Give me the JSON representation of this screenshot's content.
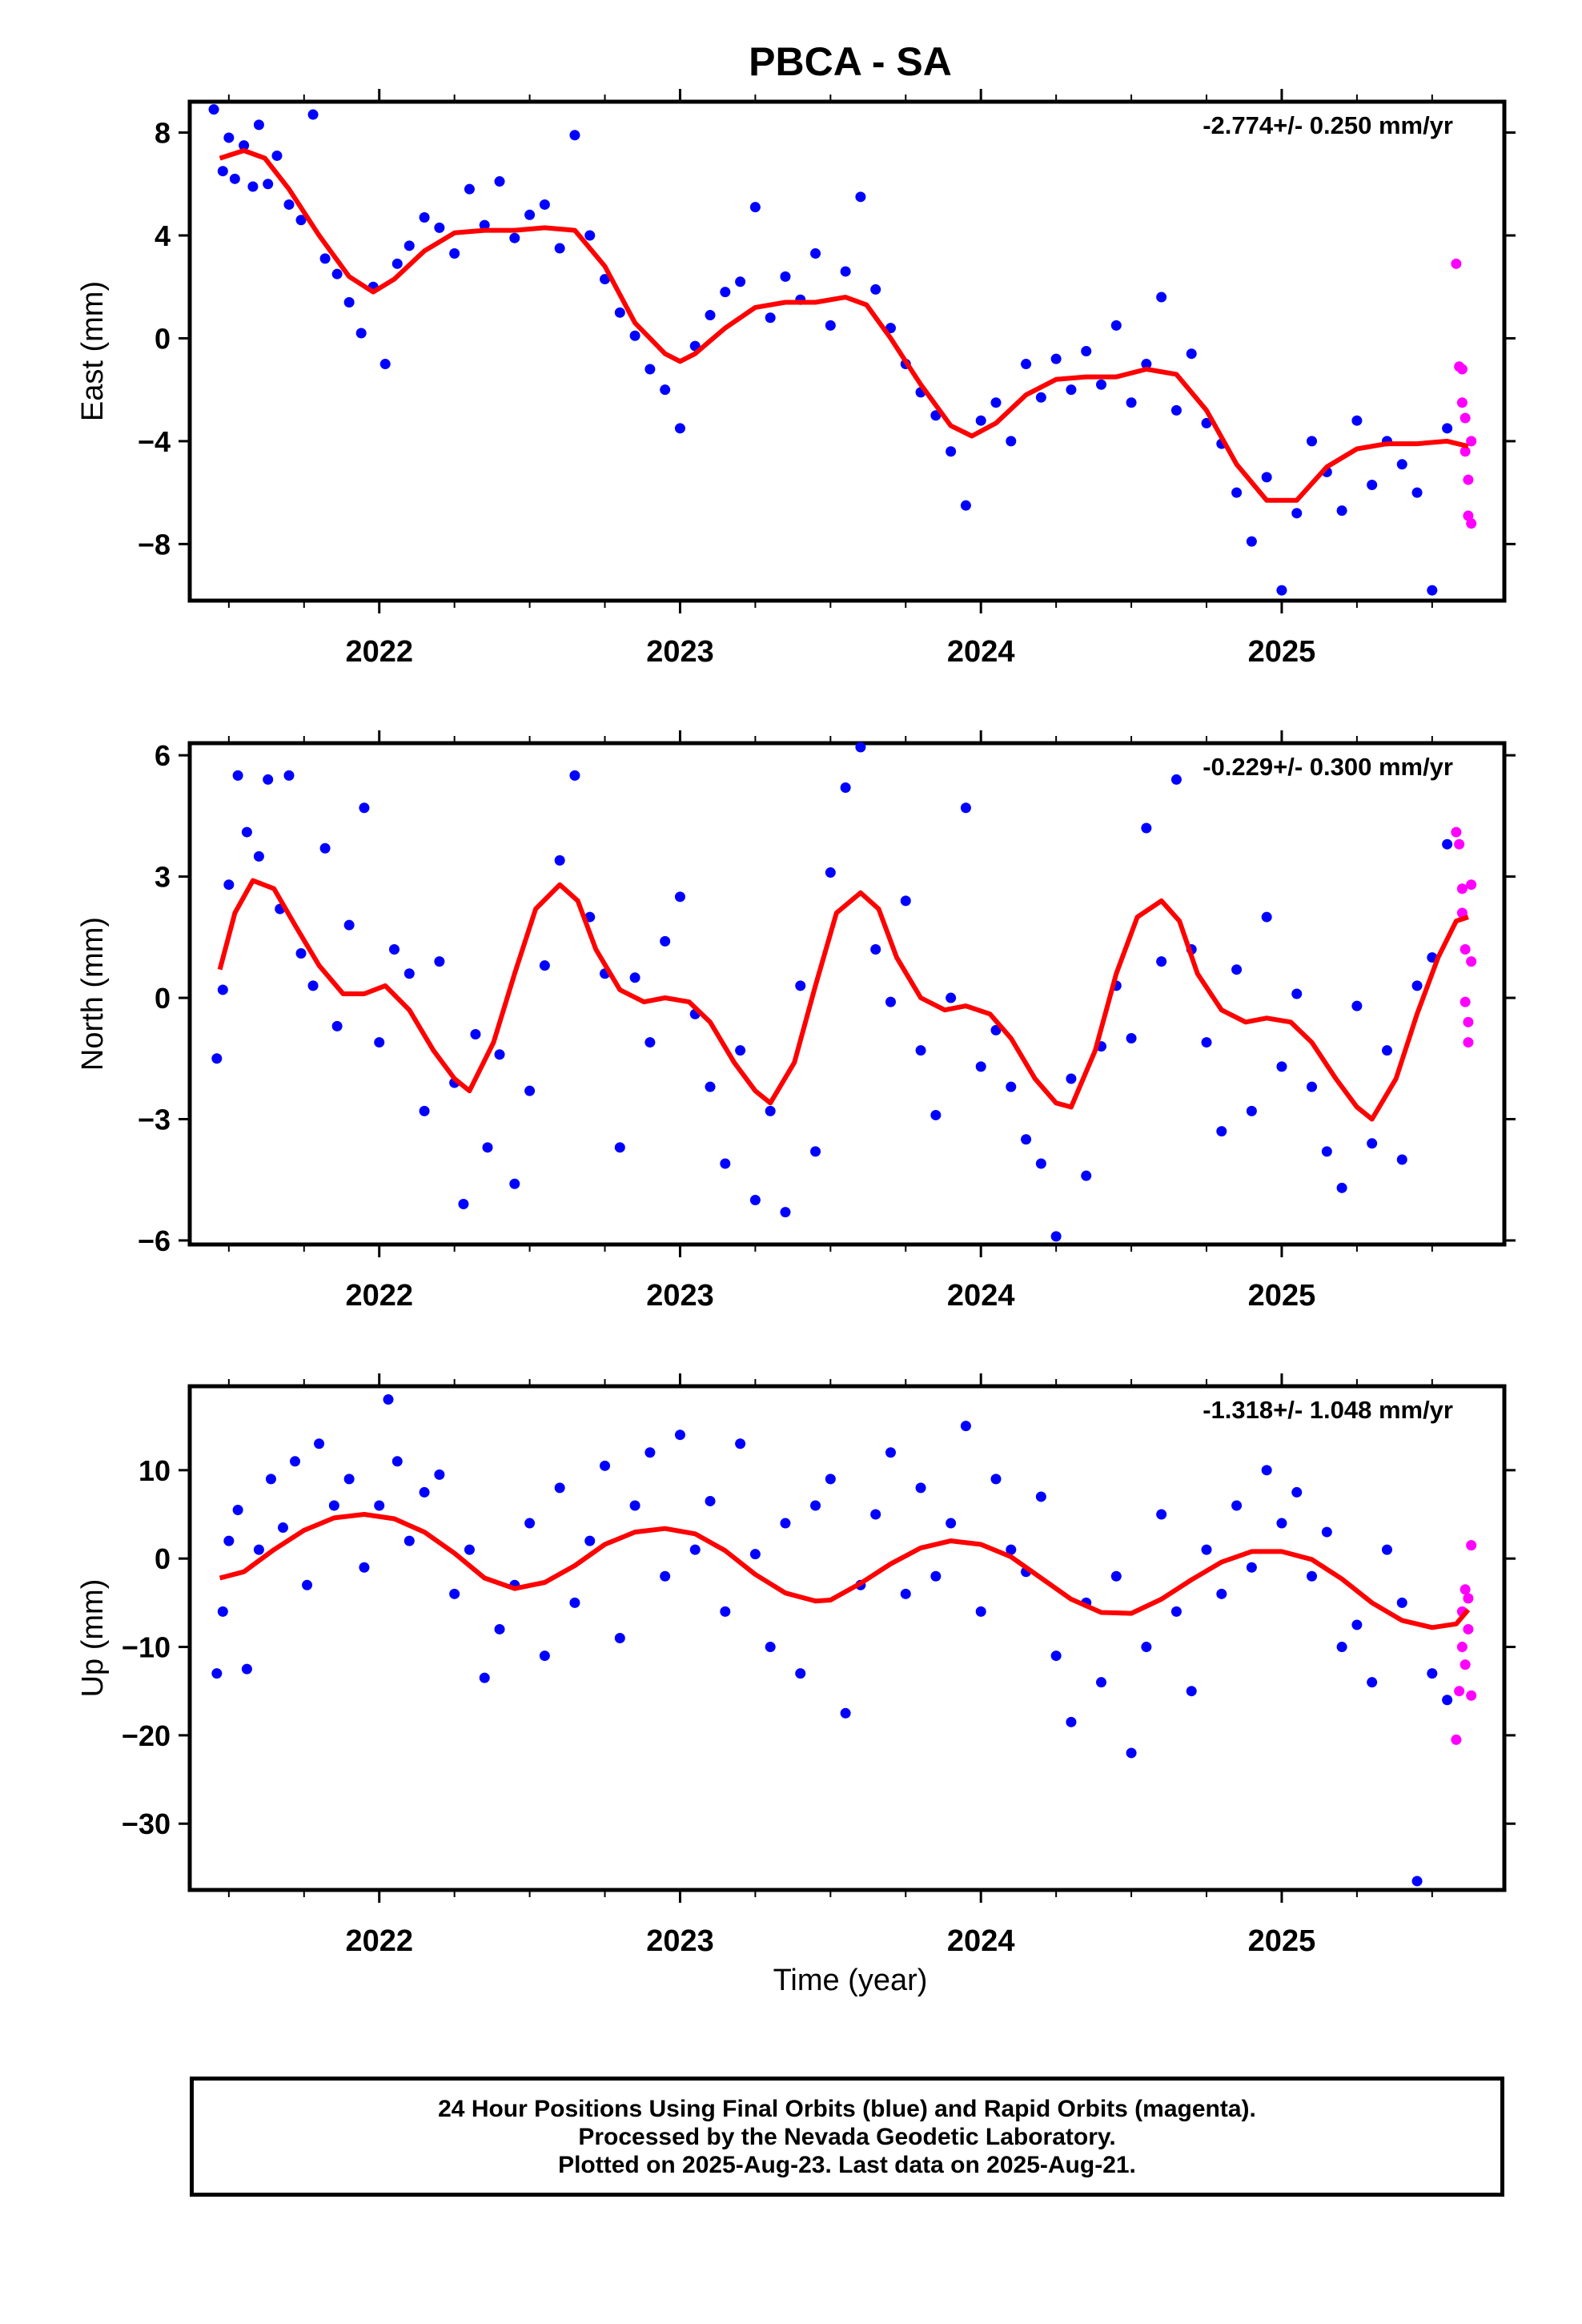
{
  "title": "PBCA - SA",
  "x_tick_labels": [
    "2022",
    "2023",
    "2024",
    "2025"
  ],
  "x_axis_label": "Time (year)",
  "colors": {
    "final": "#0000ff",
    "rapid": "#ff00ff",
    "fit": "#ff0000",
    "frame": "#000000"
  },
  "chart_data": [
    {
      "type": "scatter",
      "component": "East",
      "ylabel": "East (mm)",
      "rate_text": "-2.774+/- 0.250 mm/yr",
      "xlim": [
        2021.37,
        2025.74
      ],
      "ylim": [
        -10.2,
        9.2
      ],
      "yticks": [
        8,
        4,
        0,
        -4,
        -8
      ],
      "ytick_labels": [
        "8",
        "4",
        "0",
        "−4",
        "−8"
      ],
      "fit_line": {
        "name": "fit",
        "x": [
          2021.47,
          2021.55,
          2021.62,
          2021.7,
          2021.8,
          2021.9,
          2021.98,
          2022.05,
          2022.15,
          2022.25,
          2022.35,
          2022.45,
          2022.55,
          2022.65,
          2022.75,
          2022.85,
          2022.95,
          2023.0,
          2023.05,
          2023.15,
          2023.25,
          2023.35,
          2023.45,
          2023.55,
          2023.62,
          2023.7,
          2023.8,
          2023.9,
          2023.97,
          2024.05,
          2024.15,
          2024.25,
          2024.35,
          2024.45,
          2024.55,
          2024.65,
          2024.75,
          2024.85,
          2024.95,
          2025.05,
          2025.15,
          2025.25,
          2025.35,
          2025.45,
          2025.55,
          2025.62
        ],
        "y": [
          7.0,
          7.3,
          7.0,
          5.8,
          4.0,
          2.4,
          1.8,
          2.3,
          3.4,
          4.1,
          4.2,
          4.2,
          4.3,
          4.2,
          2.8,
          0.6,
          -0.6,
          -0.9,
          -0.6,
          0.4,
          1.2,
          1.4,
          1.4,
          1.6,
          1.3,
          0.0,
          -1.8,
          -3.4,
          -3.8,
          -3.3,
          -2.2,
          -1.6,
          -1.5,
          -1.5,
          -1.2,
          -1.4,
          -2.8,
          -4.9,
          -6.3,
          -6.3,
          -5.0,
          -4.3,
          -4.1,
          -4.1,
          -4.0,
          -4.2
        ]
      },
      "series": [
        {
          "name": "final",
          "x": [
            2021.45,
            2021.48,
            2021.5,
            2021.52,
            2021.55,
            2021.58,
            2021.6,
            2021.63,
            2021.66,
            2021.7,
            2021.74,
            2021.78,
            2021.82,
            2021.86,
            2021.9,
            2021.94,
            2021.98,
            2022.02,
            2022.06,
            2022.1,
            2022.15,
            2022.2,
            2022.25,
            2022.3,
            2022.35,
            2022.4,
            2022.45,
            2022.5,
            2022.55,
            2022.6,
            2022.65,
            2022.7,
            2022.75,
            2022.8,
            2022.85,
            2022.9,
            2022.95,
            2023.0,
            2023.05,
            2023.1,
            2023.15,
            2023.2,
            2023.25,
            2023.3,
            2023.35,
            2023.4,
            2023.45,
            2023.5,
            2023.55,
            2023.6,
            2023.65,
            2023.7,
            2023.75,
            2023.8,
            2023.85,
            2023.9,
            2023.95,
            2024.0,
            2024.05,
            2024.1,
            2024.15,
            2024.2,
            2024.25,
            2024.3,
            2024.35,
            2024.4,
            2024.45,
            2024.5,
            2024.55,
            2024.6,
            2024.65,
            2024.7,
            2024.75,
            2024.8,
            2024.85,
            2024.9,
            2024.95,
            2025.0,
            2025.05,
            2025.1,
            2025.15,
            2025.2,
            2025.25,
            2025.3,
            2025.35,
            2025.4,
            2025.45,
            2025.5,
            2025.55
          ],
          "y": [
            8.9,
            6.5,
            7.8,
            6.2,
            7.5,
            5.9,
            8.3,
            6.0,
            7.1,
            5.2,
            4.6,
            8.7,
            3.1,
            2.5,
            1.4,
            0.2,
            2.0,
            -1.0,
            2.9,
            3.6,
            4.7,
            4.3,
            3.3,
            5.8,
            4.4,
            6.1,
            3.9,
            4.8,
            5.2,
            3.5,
            7.9,
            4.0,
            2.3,
            1.0,
            0.1,
            -1.2,
            -2.0,
            -3.5,
            -0.3,
            0.9,
            1.8,
            2.2,
            5.1,
            0.8,
            2.4,
            1.5,
            3.3,
            0.5,
            2.6,
            5.5,
            1.9,
            0.4,
            -1.0,
            -2.1,
            -3.0,
            -4.4,
            -6.5,
            -3.2,
            -2.5,
            -4.0,
            -1.0,
            -2.3,
            -0.8,
            -2.0,
            -0.5,
            -1.8,
            0.5,
            -2.5,
            -1.0,
            1.6,
            -2.8,
            -0.6,
            -3.3,
            -4.1,
            -6.0,
            -7.9,
            -5.4,
            -9.8,
            -6.8,
            -4.0,
            -5.2,
            -6.7,
            -3.2,
            -5.7,
            -4.0,
            -4.9,
            -6.0,
            -9.8,
            -3.5
          ]
        },
        {
          "name": "rapid",
          "x": [
            2025.58,
            2025.59,
            2025.6,
            2025.6,
            2025.61,
            2025.61,
            2025.62,
            2025.62,
            2025.63,
            2025.63
          ],
          "y": [
            2.9,
            -1.1,
            -1.2,
            -2.5,
            -3.1,
            -4.4,
            -5.5,
            -6.9,
            -7.2,
            -4.0
          ]
        }
      ]
    },
    {
      "type": "scatter",
      "component": "North",
      "ylabel": "North (mm)",
      "rate_text": "-0.229+/- 0.300 mm/yr",
      "xlim": [
        2021.37,
        2025.74
      ],
      "ylim": [
        -6.1,
        6.3
      ],
      "yticks": [
        6,
        3,
        0,
        -3,
        -6
      ],
      "ytick_labels": [
        "6",
        "3",
        "0",
        "−3",
        "−6"
      ],
      "fit_line": {
        "name": "fit",
        "x": [
          2021.47,
          2021.52,
          2021.58,
          2021.65,
          2021.72,
          2021.8,
          2021.88,
          2021.95,
          2022.02,
          2022.1,
          2022.18,
          2022.25,
          2022.3,
          2022.38,
          2022.45,
          2022.52,
          2022.6,
          2022.66,
          2022.72,
          2022.8,
          2022.88,
          2022.95,
          2023.03,
          2023.1,
          2023.18,
          2023.25,
          2023.3,
          2023.38,
          2023.45,
          2023.52,
          2023.6,
          2023.66,
          2023.72,
          2023.8,
          2023.88,
          2023.95,
          2024.03,
          2024.1,
          2024.18,
          2024.25,
          2024.3,
          2024.38,
          2024.45,
          2024.52,
          2024.6,
          2024.66,
          2024.72,
          2024.8,
          2024.88,
          2024.95,
          2025.03,
          2025.1,
          2025.18,
          2025.25,
          2025.3,
          2025.38,
          2025.45,
          2025.52,
          2025.58,
          2025.62
        ],
        "y": [
          0.7,
          2.1,
          2.9,
          2.7,
          1.8,
          0.8,
          0.1,
          0.1,
          0.3,
          -0.3,
          -1.3,
          -2.0,
          -2.3,
          -1.1,
          0.6,
          2.2,
          2.8,
          2.4,
          1.2,
          0.2,
          -0.1,
          0.0,
          -0.1,
          -0.6,
          -1.6,
          -2.3,
          -2.6,
          -1.6,
          0.3,
          2.1,
          2.6,
          2.2,
          1.0,
          0.0,
          -0.3,
          -0.2,
          -0.4,
          -1.0,
          -2.0,
          -2.6,
          -2.7,
          -1.3,
          0.6,
          2.0,
          2.4,
          1.9,
          0.6,
          -0.3,
          -0.6,
          -0.5,
          -0.6,
          -1.1,
          -2.0,
          -2.7,
          -3.0,
          -2.0,
          -0.4,
          1.0,
          1.9,
          2.0
        ]
      },
      "series": [
        {
          "name": "final",
          "x": [
            2021.46,
            2021.48,
            2021.5,
            2021.53,
            2021.56,
            2021.6,
            2021.63,
            2021.67,
            2021.7,
            2021.74,
            2021.78,
            2021.82,
            2021.86,
            2021.9,
            2021.95,
            2022.0,
            2022.05,
            2022.1,
            2022.15,
            2022.2,
            2022.25,
            2022.28,
            2022.32,
            2022.36,
            2022.4,
            2022.45,
            2022.5,
            2022.55,
            2022.6,
            2022.65,
            2022.7,
            2022.75,
            2022.8,
            2022.85,
            2022.9,
            2022.95,
            2023.0,
            2023.05,
            2023.1,
            2023.15,
            2023.2,
            2023.25,
            2023.3,
            2023.35,
            2023.4,
            2023.45,
            2023.5,
            2023.55,
            2023.6,
            2023.65,
            2023.7,
            2023.75,
            2023.8,
            2023.85,
            2023.9,
            2023.95,
            2024.0,
            2024.05,
            2024.1,
            2024.15,
            2024.2,
            2024.25,
            2024.3,
            2024.35,
            2024.4,
            2024.45,
            2024.5,
            2024.55,
            2024.6,
            2024.65,
            2024.7,
            2024.75,
            2024.8,
            2024.85,
            2024.9,
            2024.95,
            2025.0,
            2025.05,
            2025.1,
            2025.15,
            2025.2,
            2025.25,
            2025.3,
            2025.35,
            2025.4,
            2025.45,
            2025.5,
            2025.55
          ],
          "y": [
            -1.5,
            0.2,
            2.8,
            5.5,
            4.1,
            3.5,
            5.4,
            2.2,
            5.5,
            1.1,
            0.3,
            3.7,
            -0.7,
            1.8,
            4.7,
            -1.1,
            1.2,
            0.6,
            -2.8,
            0.9,
            -2.1,
            -5.1,
            -0.9,
            -3.7,
            -1.4,
            -4.6,
            -2.3,
            0.8,
            3.4,
            5.5,
            2.0,
            0.6,
            -3.7,
            0.5,
            -1.1,
            1.4,
            2.5,
            -0.4,
            -2.2,
            -4.1,
            -1.3,
            -5.0,
            -2.8,
            -5.3,
            0.3,
            -3.8,
            3.1,
            5.2,
            6.2,
            1.2,
            -0.1,
            2.4,
            -1.3,
            -2.9,
            0.0,
            4.7,
            -1.7,
            -0.8,
            -2.2,
            -3.5,
            -4.1,
            -5.9,
            -2.0,
            -4.4,
            -1.2,
            0.3,
            -1.0,
            4.2,
            0.9,
            5.4,
            1.2,
            -1.1,
            -3.3,
            0.7,
            -2.8,
            2.0,
            -1.7,
            0.1,
            -2.2,
            -3.8,
            -4.7,
            -0.2,
            -3.6,
            -1.3,
            -4.0,
            0.3,
            1.0,
            3.8
          ]
        },
        {
          "name": "rapid",
          "x": [
            2025.58,
            2025.59,
            2025.6,
            2025.6,
            2025.61,
            2025.61,
            2025.62,
            2025.62,
            2025.63,
            2025.63
          ],
          "y": [
            4.1,
            3.8,
            2.7,
            2.1,
            1.2,
            -0.1,
            -0.6,
            -1.1,
            0.9,
            2.8
          ]
        }
      ]
    },
    {
      "type": "scatter",
      "component": "Up",
      "ylabel": "Up (mm)",
      "rate_text": "-1.318+/- 1.048 mm/yr",
      "xlim": [
        2021.37,
        2025.74
      ],
      "ylim": [
        -37.5,
        19.5
      ],
      "yticks": [
        10,
        0,
        -10,
        -20,
        -30
      ],
      "ytick_labels": [
        "10",
        "0",
        "−10",
        "−20",
        "−30"
      ],
      "fit_line": {
        "name": "fit",
        "x": [
          2021.47,
          2021.55,
          2021.65,
          2021.75,
          2021.85,
          2021.95,
          2022.05,
          2022.15,
          2022.25,
          2022.35,
          2022.45,
          2022.55,
          2022.65,
          2022.75,
          2022.85,
          2022.95,
          2023.05,
          2023.15,
          2023.25,
          2023.35,
          2023.45,
          2023.5,
          2023.6,
          2023.7,
          2023.8,
          2023.9,
          2024.0,
          2024.1,
          2024.2,
          2024.3,
          2024.4,
          2024.5,
          2024.6,
          2024.7,
          2024.8,
          2024.9,
          2025.0,
          2025.1,
          2025.2,
          2025.3,
          2025.4,
          2025.5,
          2025.58,
          2025.62
        ],
        "y": [
          -2.2,
          -1.5,
          1.0,
          3.2,
          4.6,
          5.0,
          4.5,
          3.0,
          0.6,
          -2.2,
          -3.4,
          -2.7,
          -0.8,
          1.6,
          3.0,
          3.4,
          2.8,
          0.9,
          -1.8,
          -3.9,
          -4.8,
          -4.7,
          -2.8,
          -0.6,
          1.2,
          2.0,
          1.6,
          0.2,
          -2.2,
          -4.6,
          -6.1,
          -6.2,
          -4.6,
          -2.4,
          -0.4,
          0.8,
          0.8,
          -0.1,
          -2.3,
          -5.0,
          -7.0,
          -7.8,
          -7.4,
          -5.8
        ]
      },
      "series": [
        {
          "name": "final",
          "x": [
            2021.46,
            2021.48,
            2021.5,
            2021.53,
            2021.56,
            2021.6,
            2021.64,
            2021.68,
            2021.72,
            2021.76,
            2021.8,
            2021.85,
            2021.9,
            2021.95,
            2022.0,
            2022.03,
            2022.06,
            2022.1,
            2022.15,
            2022.2,
            2022.25,
            2022.3,
            2022.35,
            2022.4,
            2022.45,
            2022.5,
            2022.55,
            2022.6,
            2022.65,
            2022.7,
            2022.75,
            2022.8,
            2022.85,
            2022.9,
            2022.95,
            2023.0,
            2023.05,
            2023.1,
            2023.15,
            2023.2,
            2023.25,
            2023.3,
            2023.35,
            2023.4,
            2023.45,
            2023.5,
            2023.55,
            2023.6,
            2023.65,
            2023.7,
            2023.75,
            2023.8,
            2023.85,
            2023.9,
            2023.95,
            2024.0,
            2024.05,
            2024.1,
            2024.15,
            2024.2,
            2024.25,
            2024.3,
            2024.35,
            2024.4,
            2024.45,
            2024.5,
            2024.55,
            2024.6,
            2024.65,
            2024.7,
            2024.75,
            2024.8,
            2024.85,
            2024.9,
            2024.95,
            2025.0,
            2025.05,
            2025.1,
            2025.15,
            2025.2,
            2025.25,
            2025.3,
            2025.35,
            2025.4,
            2025.45,
            2025.5,
            2025.55
          ],
          "y": [
            -13.0,
            -6.0,
            2.0,
            5.5,
            -12.5,
            1.0,
            9.0,
            3.5,
            11.0,
            -3.0,
            13.0,
            6.0,
            9.0,
            -1.0,
            6.0,
            18.0,
            11.0,
            2.0,
            7.5,
            9.5,
            -4.0,
            1.0,
            -13.5,
            -8.0,
            -3.0,
            4.0,
            -11.0,
            8.0,
            -5.0,
            2.0,
            10.5,
            -9.0,
            6.0,
            12.0,
            -2.0,
            14.0,
            1.0,
            6.5,
            -6.0,
            13.0,
            0.5,
            -10.0,
            4.0,
            -13.0,
            6.0,
            9.0,
            -17.5,
            -3.0,
            5.0,
            12.0,
            -4.0,
            8.0,
            -2.0,
            4.0,
            15.0,
            -6.0,
            9.0,
            1.0,
            -1.5,
            7.0,
            -11.0,
            -18.5,
            -5.0,
            -14.0,
            -2.0,
            -22.0,
            -10.0,
            5.0,
            -6.0,
            -15.0,
            1.0,
            -4.0,
            6.0,
            -1.0,
            10.0,
            4.0,
            7.5,
            -2.0,
            3.0,
            -10.0,
            -7.5,
            -14.0,
            1.0,
            -5.0,
            -36.5,
            -13.0,
            -16.0
          ]
        },
        {
          "name": "rapid",
          "x": [
            2025.58,
            2025.59,
            2025.6,
            2025.6,
            2025.61,
            2025.61,
            2025.62,
            2025.62,
            2025.63,
            2025.63
          ],
          "y": [
            -20.5,
            -15.0,
            -10.0,
            -6.0,
            -3.5,
            -12.0,
            -4.5,
            -8.0,
            1.5,
            -15.5
          ]
        }
      ]
    }
  ],
  "footer": {
    "line1": "24 Hour Positions Using Final Orbits (blue) and Rapid Orbits (magenta).",
    "line2": "Processed by the Nevada Geodetic Laboratory.",
    "line3": "Plotted on 2025-Aug-23. Last data on 2025-Aug-21."
  }
}
